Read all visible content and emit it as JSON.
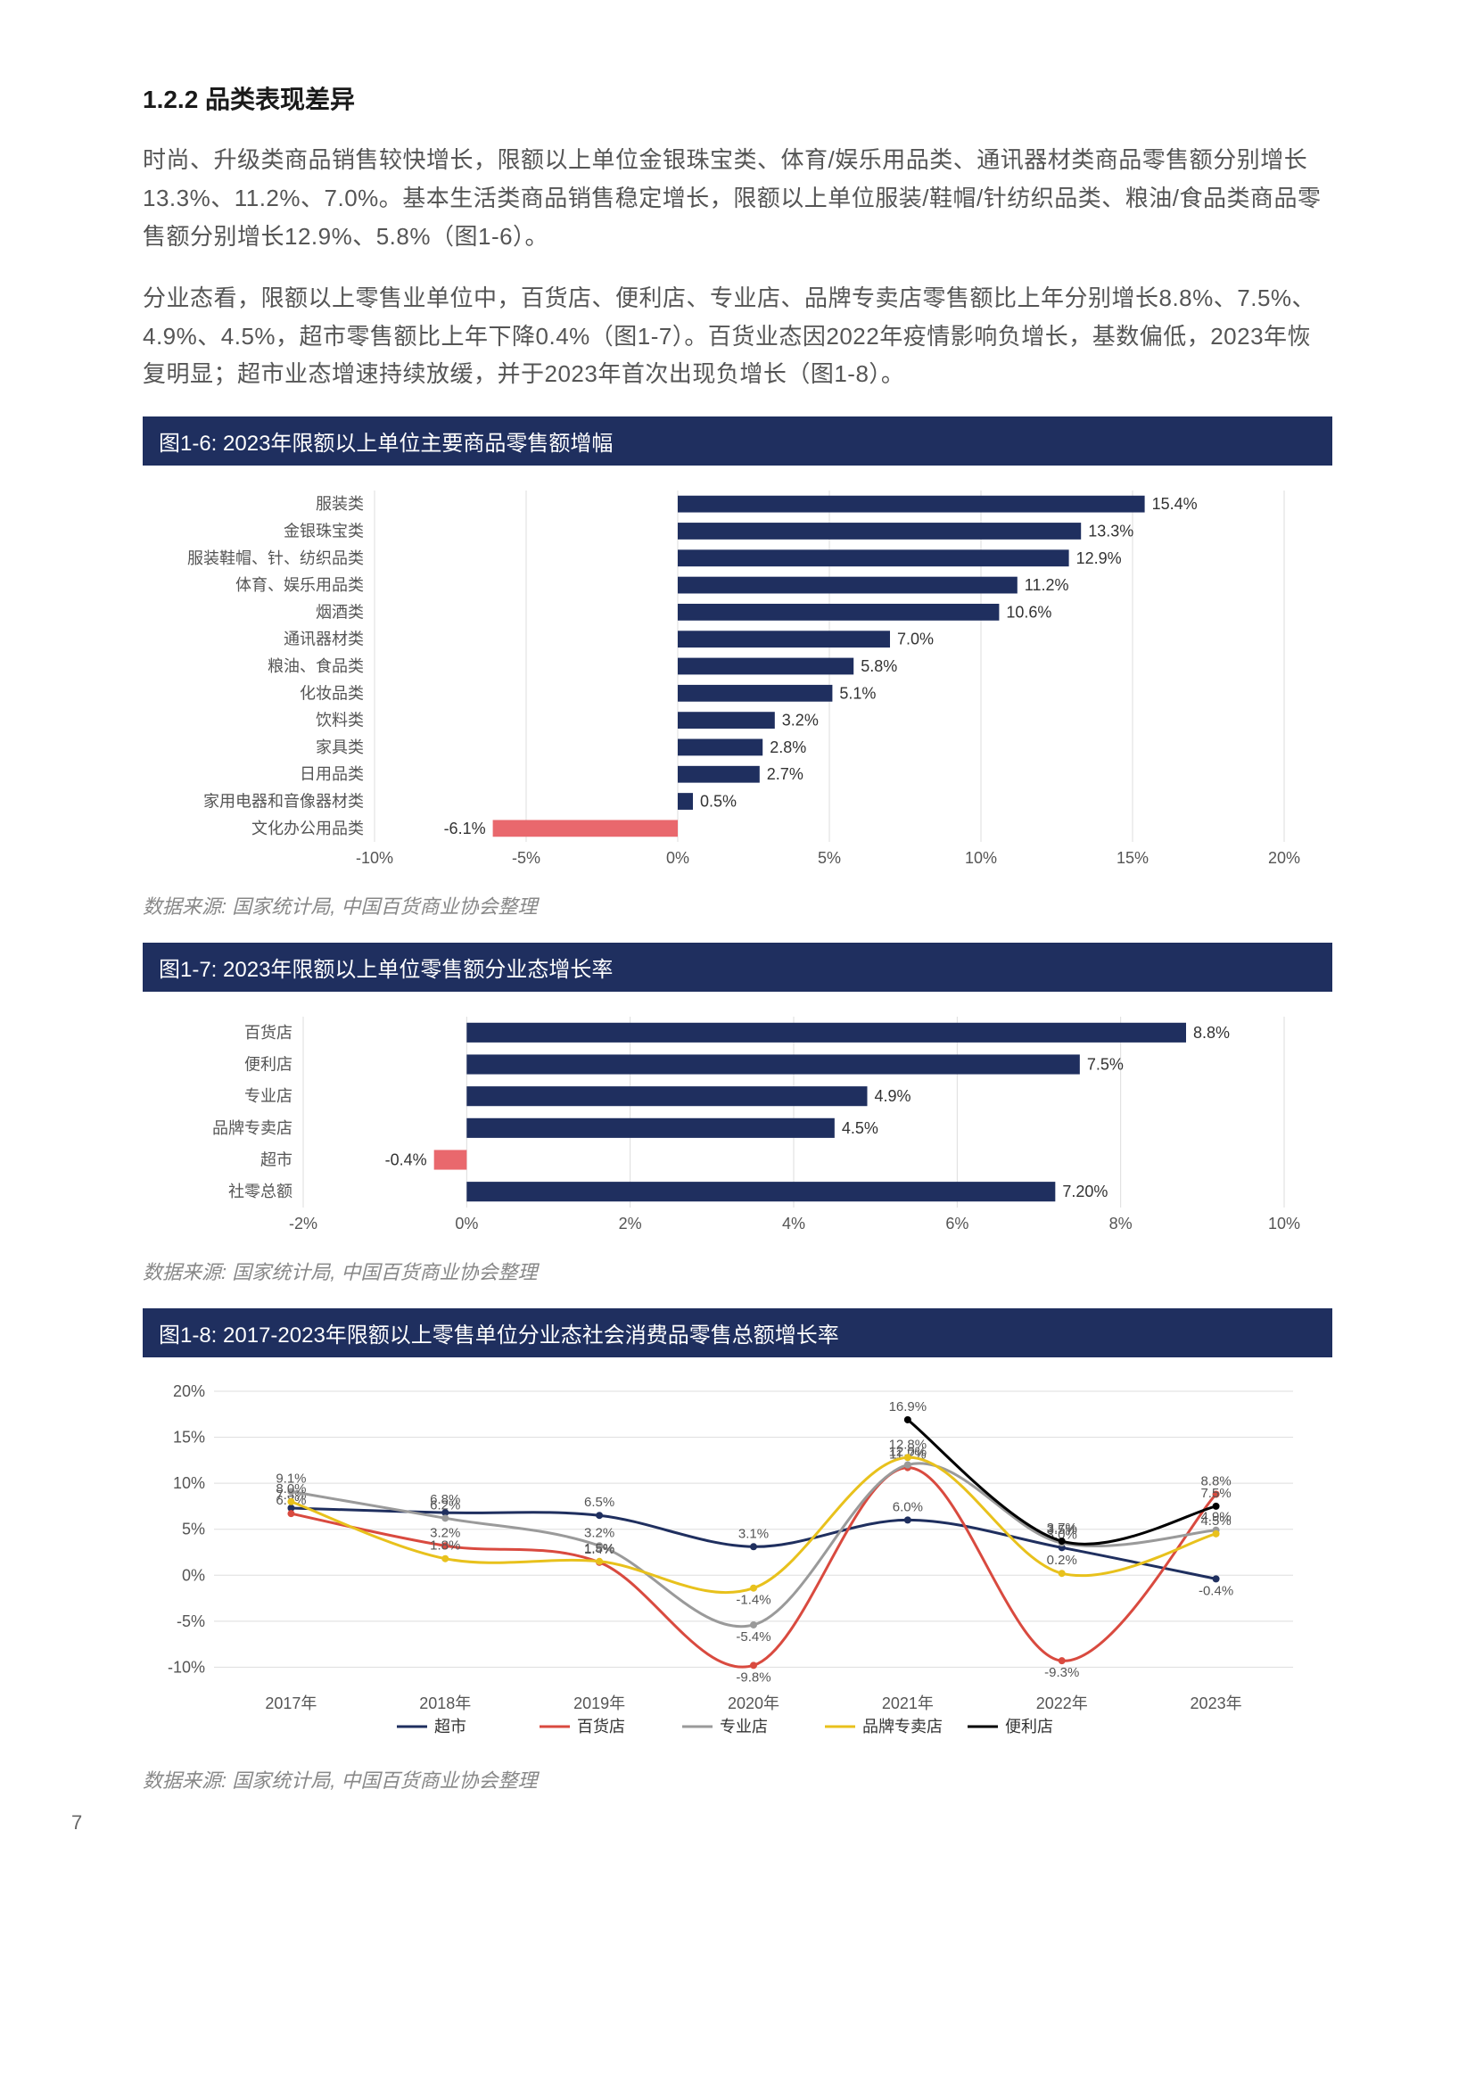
{
  "heading": "1.2.2 品类表现差异",
  "para1": "时尚、升级类商品销售较快增长，限额以上单位金银珠宝类、体育/娱乐用品类、通讯器材类商品零售额分别增长13.3%、11.2%、7.0%。基本生活类商品销售稳定增长，限额以上单位服装/鞋帽/针纺织品类、粮油/食品类商品零售额分别增长12.9%、5.8%（图1-6）。",
  "para2": "分业态看，限额以上零售业单位中，百货店、便利店、专业店、品牌专卖店零售额比上年分别增长8.8%、7.5%、4.9%、4.5%，超市零售额比上年下降0.4%（图1-7）。百货业态因2022年疫情影响负增长，基数偏低，2023年恢复明显；超市业态增速持续放缓，并于2023年首次出现负增长（图1-8）。",
  "source_label": "数据来源: 国家统计局, 中国百货商业协会整理",
  "page_number": "7",
  "chart16": {
    "title": "图1-6: 2023年限额以上单位主要商品零售额增幅",
    "type": "bar-horizontal",
    "pos_color": "#1f2f5f",
    "neg_color": "#e9686d",
    "grid_color": "#dddddd",
    "items": [
      {
        "label": "服装类",
        "value": 15.4,
        "text": "15.4%"
      },
      {
        "label": "金银珠宝类",
        "value": 13.3,
        "text": "13.3%"
      },
      {
        "label": "服装鞋帽、针、纺织品类",
        "value": 12.9,
        "text": "12.9%"
      },
      {
        "label": "体育、娱乐用品类",
        "value": 11.2,
        "text": "11.2%"
      },
      {
        "label": "烟酒类",
        "value": 10.6,
        "text": "10.6%"
      },
      {
        "label": "通讯器材类",
        "value": 7.0,
        "text": "7.0%"
      },
      {
        "label": "粮油、食品类",
        "value": 5.8,
        "text": "5.8%"
      },
      {
        "label": "化妆品类",
        "value": 5.1,
        "text": "5.1%"
      },
      {
        "label": "饮料类",
        "value": 3.2,
        "text": "3.2%"
      },
      {
        "label": "家具类",
        "value": 2.8,
        "text": "2.8%"
      },
      {
        "label": "日用品类",
        "value": 2.7,
        "text": "2.7%"
      },
      {
        "label": "家用电器和音像器材类",
        "value": 0.5,
        "text": "0.5%"
      },
      {
        "label": "文化办公用品类",
        "value": -6.1,
        "text": "-6.1%"
      }
    ],
    "x_ticks": [
      -10,
      -5,
      0,
      5,
      10,
      15,
      20
    ],
    "x_tick_labels": [
      "-10%",
      "-5%",
      "0%",
      "5%",
      "10%",
      "15%",
      "20%"
    ],
    "xlim": [
      -10,
      20
    ]
  },
  "chart17": {
    "title": "图1-7: 2023年限额以上单位零售额分业态增长率",
    "type": "bar-horizontal",
    "pos_color": "#1f2f5f",
    "neg_color": "#e9686d",
    "grid_color": "#dddddd",
    "items": [
      {
        "label": "百货店",
        "value": 8.8,
        "text": "8.8%"
      },
      {
        "label": "便利店",
        "value": 7.5,
        "text": "7.5%"
      },
      {
        "label": "专业店",
        "value": 4.9,
        "text": "4.9%"
      },
      {
        "label": "品牌专卖店",
        "value": 4.5,
        "text": "4.5%"
      },
      {
        "label": "超市",
        "value": -0.4,
        "text": "-0.4%"
      },
      {
        "label": "社零总额",
        "value": 7.2,
        "text": "7.20%"
      }
    ],
    "x_ticks": [
      -2,
      0,
      2,
      4,
      6,
      8,
      10
    ],
    "x_tick_labels": [
      "-2%",
      "0%",
      "2%",
      "4%",
      "6%",
      "8%",
      "10%"
    ],
    "xlim": [
      -2,
      10
    ]
  },
  "chart18": {
    "title": "图1-8: 2017-2023年限额以上零售单位分业态社会消费品零售总额增长率",
    "type": "line",
    "grid_color": "#dddddd",
    "background": "#ffffff",
    "categories": [
      "2017年",
      "2018年",
      "2019年",
      "2020年",
      "2021年",
      "2022年",
      "2023年"
    ],
    "y_ticks": [
      -10,
      -5,
      0,
      5,
      10,
      15,
      20
    ],
    "y_tick_labels": [
      "-10%",
      "-5%",
      "0%",
      "5%",
      "10%",
      "15%",
      "20%"
    ],
    "ylim": [
      -12,
      20
    ],
    "series": [
      {
        "name": "超市",
        "color": "#1f2f5f",
        "values": [
          7.3,
          6.8,
          6.5,
          3.1,
          6.0,
          3.0,
          -0.4
        ],
        "labels": [
          "7.3%",
          "6.8%",
          "6.5%",
          "3.1%",
          "6.0%",
          "3.0%",
          "-0.4%"
        ]
      },
      {
        "name": "百货店",
        "color": "#d94a3f",
        "values": [
          6.7,
          3.2,
          1.4,
          -9.8,
          11.7,
          -9.3,
          8.8
        ],
        "labels": [
          "6.7%",
          "3.2%",
          "1.4%",
          "-9.8%",
          "11.7%",
          "-9.3%",
          "8.8%"
        ]
      },
      {
        "name": "专业店",
        "color": "#9a9a9a",
        "values": [
          9.1,
          6.2,
          3.2,
          -5.4,
          12.0,
          3.5,
          4.9
        ],
        "labels": [
          "9.1%",
          "6.2%",
          "3.2%",
          "-5.4%",
          "12.0%",
          "3.5%",
          "4.9%"
        ]
      },
      {
        "name": "品牌专卖店",
        "color": "#e8c11c",
        "values": [
          8.0,
          1.8,
          1.5,
          -1.4,
          12.8,
          0.2,
          4.5
        ],
        "labels": [
          "8.0%",
          "1.8%",
          "1.5%",
          "-1.4%",
          "12.8%",
          "0.2%",
          "4.5%"
        ]
      },
      {
        "name": "便利店",
        "color": "#000000",
        "values": [
          null,
          null,
          null,
          null,
          16.9,
          3.7,
          7.5
        ],
        "labels": [
          null,
          null,
          null,
          null,
          "16.9%",
          "3.7%",
          "7.5%"
        ]
      }
    ]
  }
}
